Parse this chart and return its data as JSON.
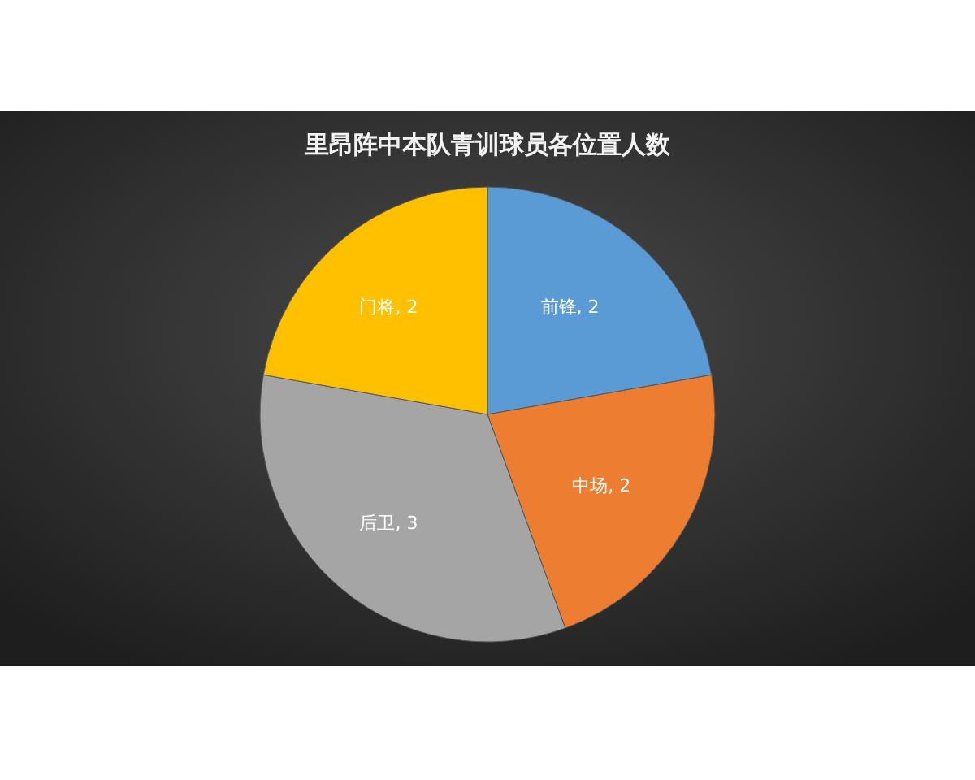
{
  "chart_data": {
    "type": "pie",
    "title": "里昂阵中本队青训球员各位置人数",
    "categories": [
      "前锋",
      "中场",
      "后卫",
      "门将"
    ],
    "values": [
      2,
      2,
      3,
      2
    ],
    "value_labels": [
      ", 2",
      ", 2",
      ", 3",
      ", 2"
    ],
    "colors": [
      "#5b9bd5",
      "#ed7d31",
      "#a5a5a5",
      "#ffc000"
    ],
    "legend": false
  }
}
